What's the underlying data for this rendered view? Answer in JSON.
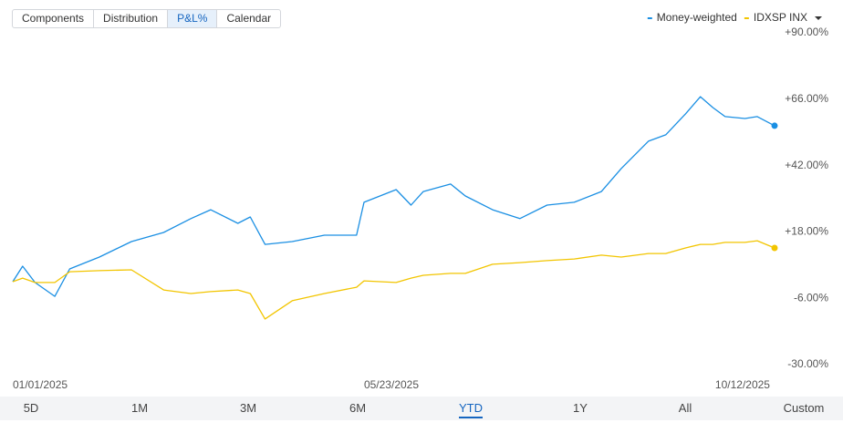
{
  "tabs": [
    "Components",
    "Distribution",
    "P&L%",
    "Calendar"
  ],
  "selected_tab": 2,
  "chart_data": {
    "type": "line",
    "legend": "top-right",
    "x": [
      "2025-01-01",
      "2025-01-05",
      "2025-01-10",
      "2025-01-18",
      "2025-01-24",
      "2025-02-05",
      "2025-02-18",
      "2025-03-03",
      "2025-03-14",
      "2025-03-22",
      "2025-04-02",
      "2025-04-07",
      "2025-04-13",
      "2025-04-24",
      "2025-05-07",
      "2025-05-20",
      "2025-05-23",
      "2025-06-05",
      "2025-06-11",
      "2025-06-16",
      "2025-06-27",
      "2025-07-03",
      "2025-07-14",
      "2025-07-25",
      "2025-08-05",
      "2025-08-16",
      "2025-08-27",
      "2025-09-04",
      "2025-09-15",
      "2025-09-22",
      "2025-09-30",
      "2025-10-06",
      "2025-10-11",
      "2025-10-16",
      "2025-10-24",
      "2025-10-29",
      "2025-11-05"
    ],
    "series": [
      {
        "name": "Money-weighted",
        "color": "#1a8fe3",
        "values": [
          0.0,
          5.6,
          -0.3,
          -5.3,
          4.6,
          8.9,
          14.5,
          17.8,
          22.8,
          26.0,
          21.1,
          23.4,
          13.5,
          14.5,
          16.8,
          16.8,
          28.7,
          33.3,
          27.7,
          32.6,
          35.3,
          31.0,
          26.0,
          22.8,
          27.7,
          28.7,
          32.6,
          40.9,
          50.8,
          53.1,
          60.7,
          66.9,
          63.0,
          59.7,
          59.0,
          59.7,
          56.4
        ]
      },
      {
        "name": "IDXSP INX",
        "color": "#f2c500",
        "values": [
          0.0,
          1.3,
          -0.3,
          -0.3,
          3.6,
          4.0,
          4.3,
          -3.0,
          -4.3,
          -3.6,
          -3.0,
          -4.3,
          -13.5,
          -6.9,
          -4.3,
          -2.0,
          0.3,
          -0.3,
          1.3,
          2.3,
          3.0,
          3.0,
          6.3,
          6.9,
          7.6,
          8.2,
          9.6,
          8.9,
          10.2,
          10.2,
          12.2,
          13.5,
          13.5,
          14.2,
          14.2,
          14.8,
          12.2
        ]
      }
    ],
    "xlim": [
      "2025-01-01",
      "2025-11-05"
    ],
    "xticks": [
      {
        "value": "2025-01-01",
        "label": "01/01/2025"
      },
      {
        "value": "2025-05-23",
        "label": "05/23/2025"
      },
      {
        "value": "2025-10-12",
        "label": "10/12/2025"
      }
    ],
    "ylim": [
      -30,
      90
    ],
    "yticks": [
      {
        "value": -30,
        "label": "-30.00%"
      },
      {
        "value": -6,
        "label": "-6.00%"
      },
      {
        "value": 18,
        "label": "+18.00%"
      },
      {
        "value": 42,
        "label": "+42.00%"
      },
      {
        "value": 66,
        "label": "+66.00%"
      },
      {
        "value": 90,
        "label": "+90.00%"
      }
    ]
  },
  "ranges": [
    "5D",
    "1M",
    "3M",
    "6M",
    "YTD",
    "1Y",
    "All",
    "Custom"
  ],
  "selected_range": 4
}
